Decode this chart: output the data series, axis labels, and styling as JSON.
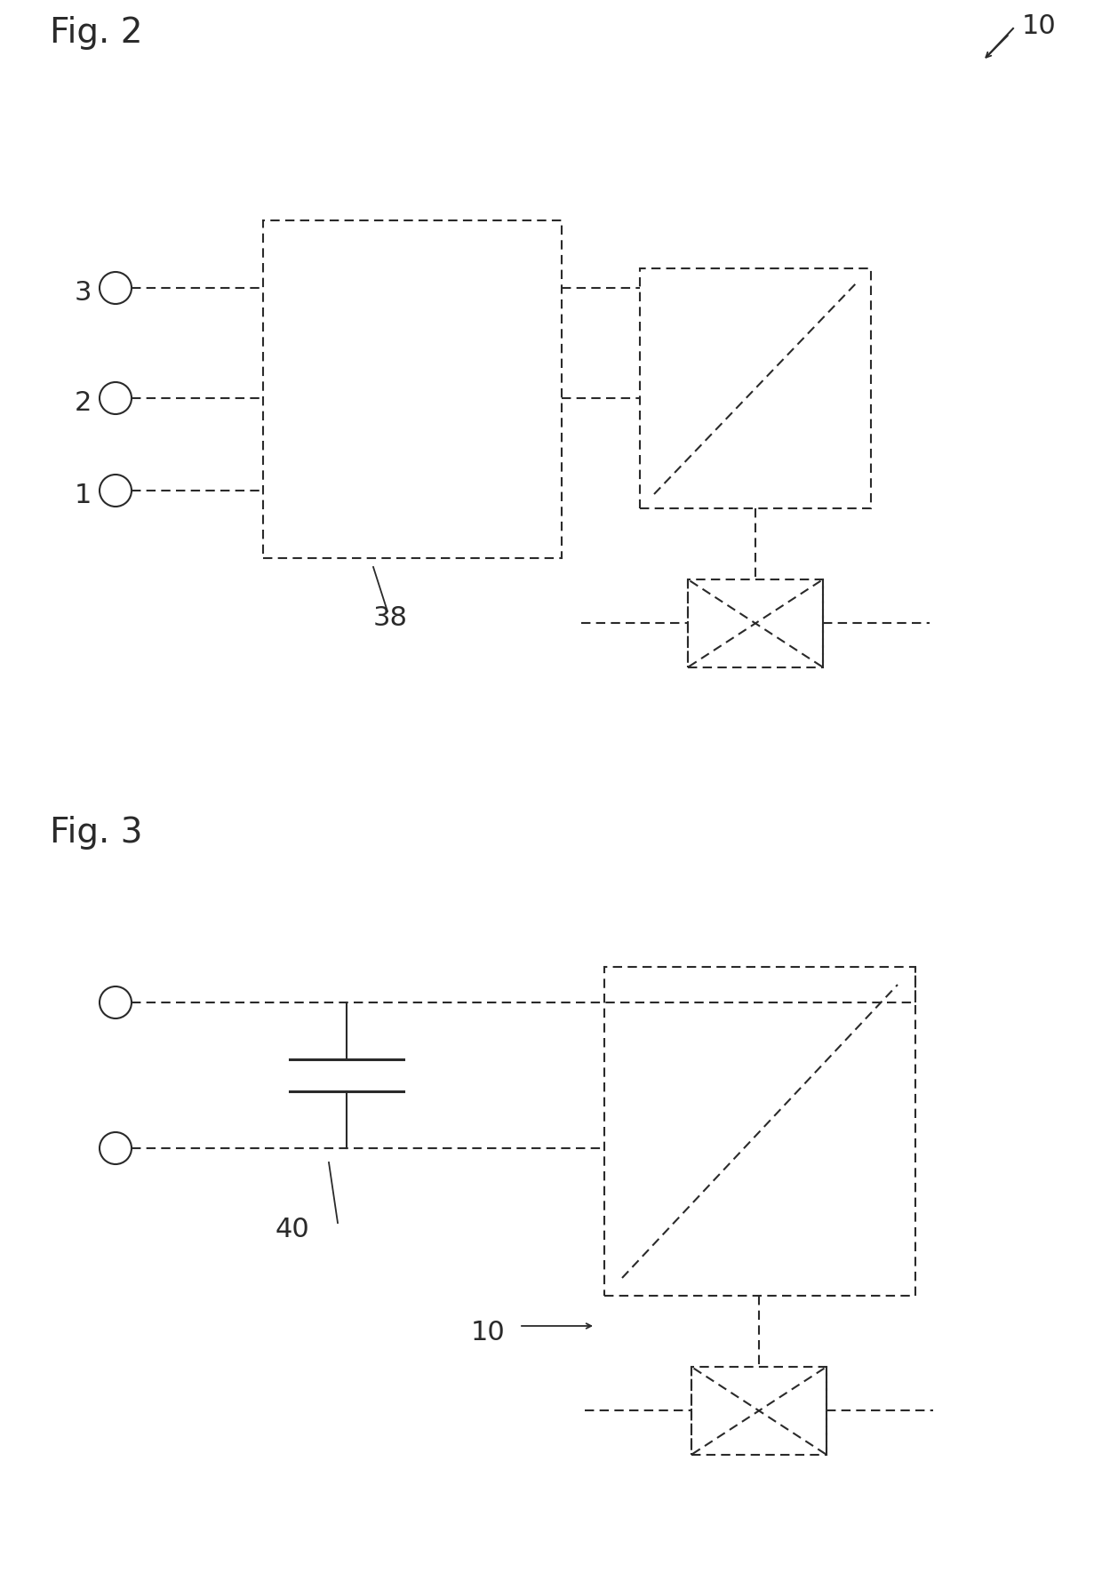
{
  "fig2_label": "Fig. 2",
  "fig3_label": "Fig. 3",
  "label_10": "10",
  "label_38": "38",
  "label_40": "40",
  "label_10b": "10",
  "bg_color": "#ffffff",
  "line_color": "#2a2a2a",
  "dashed_color": "#2a2a2a",
  "font_size_fig": 28,
  "font_size_label": 22
}
